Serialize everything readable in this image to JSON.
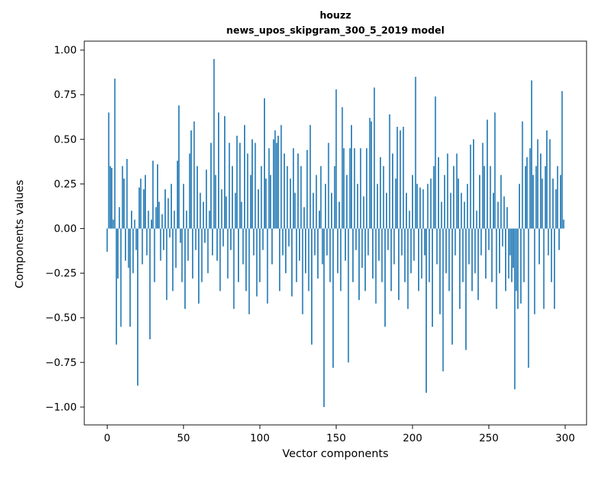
{
  "figure": {
    "title_line1": "houzz",
    "title_line2": "news_upos_skipgram_300_5_2019 model",
    "xlabel": "Vector components",
    "ylabel": "Components values"
  },
  "chart_data": {
    "type": "bar",
    "title": "houzz / news_upos_skipgram_300_5_2019 model",
    "xlabel": "Vector components",
    "ylabel": "Components values",
    "bar_color": "#1f77b4",
    "axis_color": "#000000",
    "grid": false,
    "legend": "none",
    "xlim": [
      -15,
      314
    ],
    "ylim": [
      -1.1,
      1.05
    ],
    "x_ticks": [
      0,
      50,
      100,
      150,
      200,
      250,
      300
    ],
    "y_ticks": [
      -1.0,
      -0.75,
      -0.5,
      -0.25,
      0.0,
      0.25,
      0.5,
      0.75,
      1.0
    ],
    "values": [
      -0.13,
      0.65,
      0.35,
      0.34,
      0.05,
      0.84,
      -0.65,
      -0.28,
      0.12,
      -0.55,
      0.35,
      0.28,
      -0.18,
      0.39,
      -0.22,
      -0.55,
      0.1,
      -0.25,
      0.05,
      -0.12,
      -0.88,
      0.23,
      0.28,
      -0.2,
      0.22,
      0.3,
      -0.15,
      0.1,
      -0.62,
      0.05,
      0.38,
      -0.3,
      0.12,
      0.36,
      0.15,
      -0.18,
      0.08,
      -0.12,
      0.22,
      -0.4,
      0.17,
      -0.05,
      0.25,
      -0.35,
      0.1,
      -0.22,
      0.38,
      0.69,
      -0.08,
      -0.3,
      0.25,
      -0.45,
      0.1,
      -0.18,
      0.42,
      0.55,
      -0.28,
      0.6,
      -0.12,
      0.35,
      -0.42,
      0.2,
      -0.3,
      0.15,
      -0.08,
      0.33,
      -0.25,
      0.1,
      0.48,
      -0.15,
      0.95,
      0.3,
      -0.18,
      0.65,
      -0.35,
      0.22,
      -0.1,
      0.63,
      0.18,
      -0.28,
      0.48,
      -0.12,
      0.35,
      -0.45,
      0.2,
      0.52,
      -0.3,
      0.48,
      0.15,
      -0.2,
      0.58,
      -0.35,
      0.42,
      -0.48,
      0.3,
      0.5,
      -0.15,
      0.48,
      -0.38,
      0.22,
      -0.3,
      0.35,
      -0.12,
      0.73,
      0.28,
      -0.42,
      0.45,
      0.3,
      -0.2,
      0.5,
      0.55,
      0.48,
      0.52,
      -0.35,
      0.58,
      -0.15,
      0.42,
      -0.25,
      0.35,
      -0.1,
      0.28,
      -0.38,
      0.45,
      0.2,
      -0.3,
      0.42,
      -0.18,
      0.35,
      -0.48,
      0.12,
      -0.25,
      0.44,
      -0.35,
      0.58,
      -0.65,
      0.2,
      -0.15,
      0.3,
      -0.28,
      0.1,
      0.35,
      -0.2,
      -1.0,
      0.25,
      -0.15,
      0.48,
      -0.3,
      0.2,
      -0.78,
      0.35,
      0.78,
      -0.25,
      0.15,
      -0.35,
      0.68,
      0.45,
      -0.18,
      0.3,
      -0.75,
      0.45,
      0.58,
      -0.3,
      0.45,
      -0.12,
      0.25,
      -0.4,
      0.45,
      -0.22,
      0.18,
      -0.35,
      0.45,
      -0.15,
      0.62,
      0.6,
      -0.28,
      0.79,
      -0.42,
      0.25,
      -0.18,
      0.4,
      -0.3,
      0.35,
      -0.55,
      0.2,
      -0.12,
      0.64,
      -0.35,
      0.42,
      -0.2,
      0.28,
      0.57,
      -0.4,
      0.55,
      -0.15,
      0.57,
      -0.3,
      0.2,
      -0.45,
      0.1,
      -0.25,
      0.3,
      -0.18,
      0.85,
      0.25,
      -0.35,
      0.23,
      -0.28,
      0.22,
      -0.15,
      -0.92,
      0.25,
      -0.3,
      0.28,
      -0.55,
      0.35,
      0.74,
      -0.2,
      0.4,
      -0.48,
      0.15,
      -0.8,
      0.3,
      -0.25,
      0.42,
      -0.35,
      0.2,
      -0.65,
      0.35,
      -0.15,
      0.42,
      0.28,
      -0.45,
      0.2,
      -0.3,
      0.15,
      -0.68,
      0.25,
      -0.2,
      0.47,
      -0.35,
      0.5,
      -0.25,
      0.1,
      -0.4,
      0.3,
      -0.15,
      0.48,
      0.35,
      -0.28,
      0.61,
      -0.12,
      0.35,
      -0.3,
      0.2,
      0.65,
      -0.45,
      0.15,
      -0.25,
      0.3,
      -0.1,
      0.18,
      -0.35,
      0.12,
      -0.28,
      -0.15,
      -0.3,
      -0.22,
      -0.9,
      -0.35,
      -0.45,
      0.25,
      -0.42,
      0.6,
      -0.3,
      0.35,
      0.4,
      -0.78,
      0.45,
      0.83,
      0.3,
      -0.48,
      0.35,
      0.5,
      -0.2,
      0.42,
      0.28,
      -0.45,
      0.35,
      0.55,
      -0.15,
      0.5,
      -0.3,
      0.28,
      -0.45,
      0.22,
      0.35,
      -0.12,
      0.3,
      0.77,
      0.05
    ]
  }
}
